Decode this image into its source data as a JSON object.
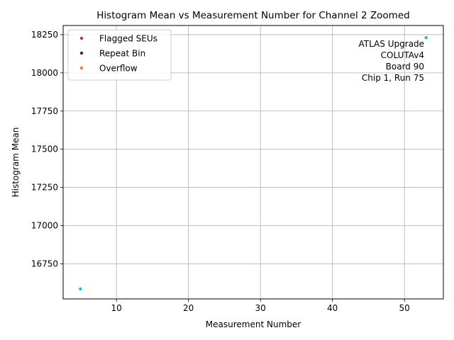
{
  "chart_data": {
    "type": "scatter",
    "title": "Histogram Mean vs Measurement Number for Channel 2 Zoomed",
    "xlabel": "Measurement Number",
    "ylabel": "Histogram Mean",
    "xlim": [
      2.6,
      55.4
    ],
    "ylim": [
      16520,
      18310
    ],
    "xticks": [
      10,
      20,
      30,
      40,
      50
    ],
    "yticks": [
      16750,
      17000,
      17250,
      17500,
      17750,
      18000,
      18250
    ],
    "grid": true,
    "legend_position": "top-left",
    "series": [
      {
        "name": "",
        "color": "#17becf",
        "points": [
          {
            "x": 5,
            "y": 16585
          },
          {
            "x": 53,
            "y": 18230
          }
        ]
      },
      {
        "name": "Flagged SEUs",
        "color": "#d62728",
        "points": []
      },
      {
        "name": "Repeat Bin",
        "color": "#6a0d5a",
        "points": []
      },
      {
        "name": "Overflow",
        "color": "#ff7f0e",
        "points": []
      }
    ],
    "annotation": [
      "ATLAS Upgrade",
      "COLUTAv4",
      "Board 90",
      "Chip 1, Run 75"
    ]
  }
}
